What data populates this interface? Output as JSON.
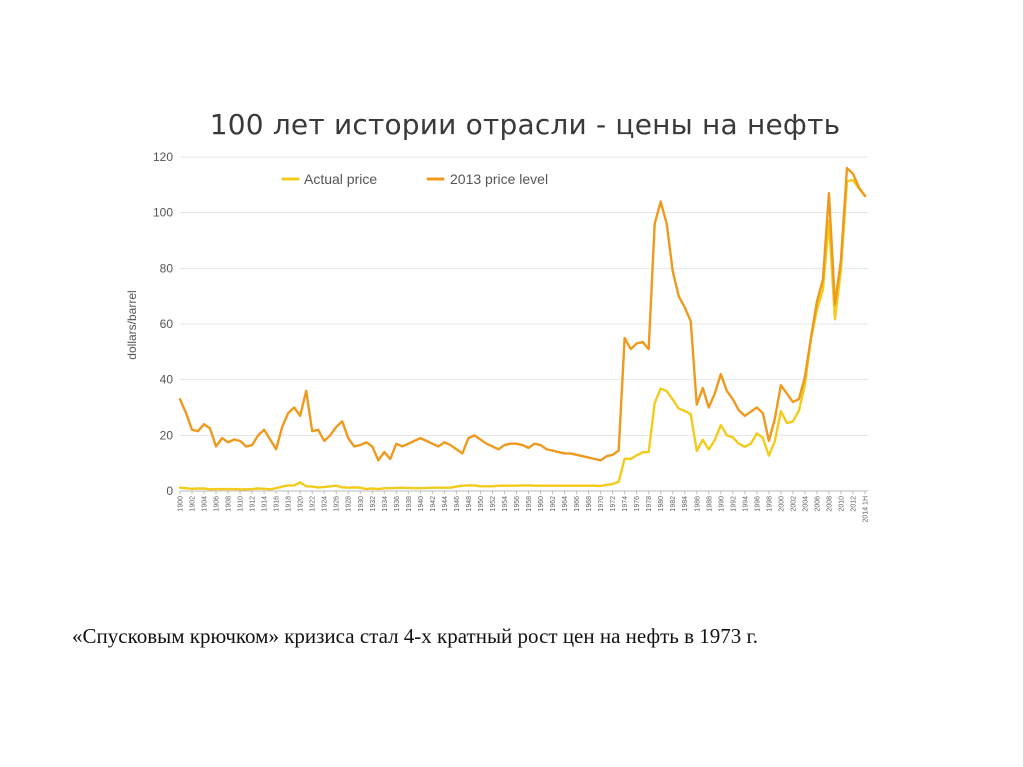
{
  "slide": {
    "caption": "«Спусковым крючком» кризиса стал 4-х кратный рост цен на нефть в 1973 г."
  },
  "chart_data": {
    "type": "line",
    "title": "100 лет истории отрасли - цены на нефть",
    "xlabel": "",
    "ylabel": "dollars/barrel",
    "ylim": [
      0,
      120
    ],
    "yticks": [
      0,
      20,
      40,
      60,
      80,
      100,
      120
    ],
    "xticks": [
      "1900",
      "1902",
      "1904",
      "1906",
      "1908",
      "1910",
      "1912",
      "1914",
      "1916",
      "1918",
      "1920",
      "1922",
      "1924",
      "1926",
      "1928",
      "1930",
      "1932",
      "1934",
      "1936",
      "1938",
      "1940",
      "1942",
      "1944",
      "1946",
      "1948",
      "1950",
      "1952",
      "1954",
      "1956",
      "1958",
      "1960",
      "1962",
      "1964",
      "1966",
      "1968",
      "1970",
      "1972",
      "1974",
      "1976",
      "1978",
      "1980",
      "1982",
      "1984",
      "1986",
      "1988",
      "1990",
      "1992",
      "1994",
      "1996",
      "1998",
      "2000",
      "2002",
      "2004",
      "2006",
      "2008",
      "2010",
      "2012",
      "2014 1H"
    ],
    "grid": true,
    "legend_position": "top-left",
    "colors": {
      "actual": "#F2CB1B",
      "real2013": "#EE9A1E",
      "grid": "#e6e6e6",
      "axis": "#bbbbbb"
    },
    "x": [
      1900,
      1901,
      1902,
      1903,
      1904,
      1905,
      1906,
      1907,
      1908,
      1909,
      1910,
      1911,
      1912,
      1913,
      1914,
      1915,
      1916,
      1917,
      1918,
      1919,
      1920,
      1921,
      1922,
      1923,
      1924,
      1925,
      1926,
      1927,
      1928,
      1929,
      1930,
      1931,
      1932,
      1933,
      1934,
      1935,
      1936,
      1937,
      1938,
      1939,
      1940,
      1941,
      1942,
      1943,
      1944,
      1945,
      1946,
      1947,
      1948,
      1949,
      1950,
      1951,
      1952,
      1953,
      1954,
      1955,
      1956,
      1957,
      1958,
      1959,
      1960,
      1961,
      1962,
      1963,
      1964,
      1965,
      1966,
      1967,
      1968,
      1969,
      1970,
      1971,
      1972,
      1973,
      1974,
      1975,
      1976,
      1977,
      1978,
      1979,
      1980,
      1981,
      1982,
      1983,
      1984,
      1985,
      1986,
      1987,
      1988,
      1989,
      1990,
      1991,
      1992,
      1993,
      1994,
      1995,
      1996,
      1997,
      1998,
      1999,
      2000,
      2001,
      2002,
      2003,
      2004,
      2005,
      2006,
      2007,
      2008,
      2009,
      2010,
      2011,
      2012,
      2013,
      2014
    ],
    "series": [
      {
        "name": "Actual price",
        "values": [
          1.2,
          1.0,
          0.8,
          0.9,
          0.9,
          0.6,
          0.7,
          0.7,
          0.7,
          0.7,
          0.6,
          0.6,
          0.7,
          0.9,
          0.8,
          0.6,
          1.0,
          1.6,
          2.0,
          2.0,
          3.1,
          1.7,
          1.6,
          1.3,
          1.4,
          1.7,
          1.9,
          1.3,
          1.2,
          1.3,
          1.2,
          0.7,
          0.9,
          0.7,
          1.0,
          1.0,
          1.1,
          1.2,
          1.1,
          1.0,
          1.0,
          1.1,
          1.2,
          1.2,
          1.2,
          1.2,
          1.6,
          1.9,
          2.0,
          2.0,
          1.7,
          1.7,
          1.7,
          1.9,
          1.9,
          1.9,
          1.9,
          2.0,
          2.0,
          1.9,
          1.9,
          1.9,
          1.9,
          1.9,
          1.9,
          1.9,
          1.9,
          1.9,
          1.9,
          1.9,
          1.8,
          2.2,
          2.5,
          3.3,
          11.6,
          11.5,
          12.8,
          13.9,
          14.0,
          31.6,
          36.8,
          35.9,
          32.9,
          29.6,
          28.8,
          27.6,
          14.4,
          18.4,
          14.9,
          18.3,
          23.7,
          20.0,
          19.3,
          17.0,
          15.9,
          17.0,
          20.7,
          19.1,
          12.7,
          17.9,
          28.7,
          24.4,
          25.0,
          28.8,
          38.3,
          54.5,
          65.1,
          72.4,
          97.0,
          61.7,
          79.6,
          111.3,
          111.7,
          108.7,
          106.0
        ]
      },
      {
        "name": "2013 price level",
        "values": [
          33.0,
          28.0,
          22.0,
          21.5,
          24.0,
          22.5,
          16.0,
          19.0,
          17.5,
          18.5,
          18.0,
          16.0,
          16.5,
          20.0,
          22.0,
          18.5,
          15.0,
          23.0,
          28.0,
          30.0,
          27.0,
          36.0,
          21.5,
          22.0,
          18.0,
          20.0,
          23.0,
          25.0,
          19.0,
          16.0,
          16.5,
          17.5,
          16.0,
          11.0,
          14.0,
          11.5,
          17.0,
          16.0,
          17.0,
          18.0,
          19.0,
          18.0,
          17.0,
          16.0,
          17.5,
          16.5,
          15.0,
          13.5,
          19.0,
          20.0,
          18.5,
          17.0,
          16.0,
          15.0,
          16.5,
          17.0,
          17.0,
          16.5,
          15.5,
          17.0,
          16.5,
          15.0,
          14.5,
          14.0,
          13.5,
          13.5,
          13.0,
          12.5,
          12.0,
          11.5,
          11.0,
          12.5,
          13.0,
          14.5,
          55.0,
          51.0,
          53.0,
          53.5,
          51.0,
          96.0,
          104.0,
          96.0,
          79.0,
          70.0,
          66.0,
          61.0,
          31.0,
          37.0,
          30.0,
          35.0,
          42.0,
          36.0,
          33.0,
          29.0,
          27.0,
          28.5,
          30.0,
          28.0,
          18.0,
          26.0,
          38.0,
          35.0,
          32.0,
          33.0,
          41.0,
          55.0,
          68.0,
          76.0,
          107.0,
          67.0,
          83.0,
          116.0,
          114.0,
          109.0,
          106.0
        ]
      }
    ]
  }
}
